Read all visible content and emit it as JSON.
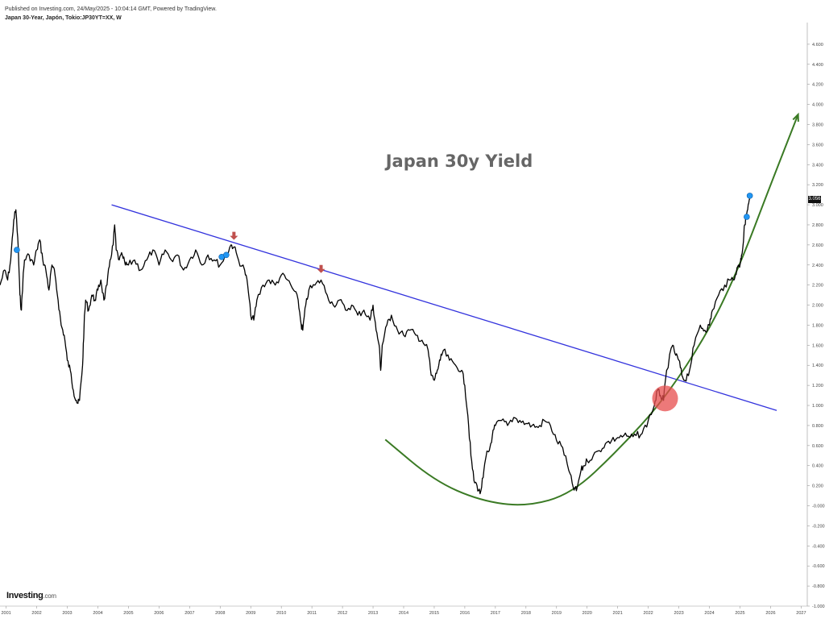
{
  "header": {
    "published": "Published on Investing.com, 24/May/2025 - 10:04:14 GMT, Powered by TradingView.",
    "symbol": "Japan 30-Year, Japón, Tokio:JP30YT=XX, W"
  },
  "logo": {
    "name": "Investing",
    "suffix": ".com"
  },
  "chart_data": {
    "type": "line",
    "title": "Japan 30y Yield",
    "last_price": "3.056",
    "xlim": [
      2000.8,
      2027.2
    ],
    "ylim": [
      -1.0,
      4.8
    ],
    "x_ticks": [
      "2001",
      "2002",
      "2003",
      "2004",
      "2005",
      "2006",
      "2007",
      "2008",
      "2009",
      "2010",
      "2011",
      "2012",
      "2013",
      "2014",
      "2015",
      "2016",
      "2017",
      "2018",
      "2019",
      "2020",
      "2021",
      "2022",
      "2023",
      "2024",
      "2025",
      "2026",
      "2027"
    ],
    "y_ticks": [
      "4.600",
      "4.400",
      "4.200",
      "4.000",
      "3.800",
      "3.600",
      "3.400",
      "3.200",
      "3.000",
      "2.800",
      "2.600",
      "2.400",
      "2.200",
      "2.000",
      "1.800",
      "1.600",
      "1.400",
      "1.200",
      "1.000",
      "0.800",
      "0.600",
      "0.400",
      "0.200",
      "-0.000",
      "-0.200",
      "-0.400",
      "-0.600",
      "-0.800",
      "-1.000"
    ],
    "series": [
      {
        "color": "#000000",
        "points": [
          [
            2000.8,
            2.2
          ],
          [
            2000.95,
            2.35
          ],
          [
            2001.05,
            2.25
          ],
          [
            2001.15,
            2.45
          ],
          [
            2001.25,
            2.85
          ],
          [
            2001.32,
            2.95
          ],
          [
            2001.4,
            2.55
          ],
          [
            2001.45,
            2.1
          ],
          [
            2001.5,
            1.95
          ],
          [
            2001.55,
            2.25
          ],
          [
            2001.6,
            2.45
          ],
          [
            2001.75,
            2.5
          ],
          [
            2001.9,
            2.4
          ],
          [
            2002.0,
            2.55
          ],
          [
            2002.1,
            2.65
          ],
          [
            2002.2,
            2.45
          ],
          [
            2002.3,
            2.35
          ],
          [
            2002.4,
            2.15
          ],
          [
            2002.5,
            2.4
          ],
          [
            2002.6,
            2.3
          ],
          [
            2002.7,
            2.05
          ],
          [
            2002.8,
            1.8
          ],
          [
            2002.9,
            1.7
          ],
          [
            2003.0,
            1.45
          ],
          [
            2003.1,
            1.35
          ],
          [
            2003.2,
            1.15
          ],
          [
            2003.3,
            1.05
          ],
          [
            2003.35,
            1.02
          ],
          [
            2003.4,
            1.05
          ],
          [
            2003.5,
            1.4
          ],
          [
            2003.55,
            1.8
          ],
          [
            2003.6,
            2.05
          ],
          [
            2003.7,
            1.95
          ],
          [
            2003.8,
            2.1
          ],
          [
            2003.9,
            2.05
          ],
          [
            2004.0,
            2.15
          ],
          [
            2004.1,
            2.25
          ],
          [
            2004.2,
            2.05
          ],
          [
            2004.3,
            2.2
          ],
          [
            2004.4,
            2.45
          ],
          [
            2004.5,
            2.6
          ],
          [
            2004.55,
            2.8
          ],
          [
            2004.6,
            2.55
          ],
          [
            2004.7,
            2.45
          ],
          [
            2004.8,
            2.5
          ],
          [
            2004.9,
            2.4
          ],
          [
            2005.0,
            2.4
          ],
          [
            2005.2,
            2.45
          ],
          [
            2005.4,
            2.35
          ],
          [
            2005.6,
            2.45
          ],
          [
            2005.8,
            2.55
          ],
          [
            2006.0,
            2.4
          ],
          [
            2006.2,
            2.55
          ],
          [
            2006.4,
            2.45
          ],
          [
            2006.6,
            2.5
          ],
          [
            2006.8,
            2.35
          ],
          [
            2007.0,
            2.45
          ],
          [
            2007.2,
            2.55
          ],
          [
            2007.4,
            2.4
          ],
          [
            2007.6,
            2.5
          ],
          [
            2007.8,
            2.45
          ],
          [
            2008.0,
            2.4
          ],
          [
            2008.2,
            2.5
          ],
          [
            2008.35,
            2.6
          ],
          [
            2008.45,
            2.58
          ],
          [
            2008.6,
            2.45
          ],
          [
            2008.8,
            2.35
          ],
          [
            2008.9,
            2.2
          ],
          [
            2009.0,
            1.9
          ],
          [
            2009.1,
            1.85
          ],
          [
            2009.2,
            2.05
          ],
          [
            2009.4,
            2.2
          ],
          [
            2009.6,
            2.25
          ],
          [
            2009.8,
            2.2
          ],
          [
            2010.0,
            2.3
          ],
          [
            2010.2,
            2.25
          ],
          [
            2010.4,
            2.15
          ],
          [
            2010.55,
            2.05
          ],
          [
            2010.65,
            1.8
          ],
          [
            2010.7,
            1.75
          ],
          [
            2010.8,
            2.0
          ],
          [
            2010.9,
            2.15
          ],
          [
            2011.1,
            2.2
          ],
          [
            2011.3,
            2.25
          ],
          [
            2011.5,
            2.1
          ],
          [
            2011.7,
            2.0
          ],
          [
            2011.9,
            2.05
          ],
          [
            2012.1,
            1.95
          ],
          [
            2012.3,
            2.0
          ],
          [
            2012.5,
            1.9
          ],
          [
            2012.7,
            1.95
          ],
          [
            2012.9,
            1.85
          ],
          [
            2013.0,
            2.0
          ],
          [
            2013.1,
            1.75
          ],
          [
            2013.2,
            1.6
          ],
          [
            2013.25,
            1.35
          ],
          [
            2013.3,
            1.6
          ],
          [
            2013.45,
            1.8
          ],
          [
            2013.6,
            1.9
          ],
          [
            2013.8,
            1.75
          ],
          [
            2014.0,
            1.7
          ],
          [
            2014.2,
            1.75
          ],
          [
            2014.4,
            1.7
          ],
          [
            2014.6,
            1.65
          ],
          [
            2014.8,
            1.55
          ],
          [
            2014.9,
            1.3
          ],
          [
            2015.0,
            1.25
          ],
          [
            2015.1,
            1.35
          ],
          [
            2015.2,
            1.45
          ],
          [
            2015.3,
            1.55
          ],
          [
            2015.5,
            1.45
          ],
          [
            2015.7,
            1.4
          ],
          [
            2015.9,
            1.35
          ],
          [
            2016.0,
            1.2
          ],
          [
            2016.1,
            0.9
          ],
          [
            2016.2,
            0.5
          ],
          [
            2016.3,
            0.25
          ],
          [
            2016.4,
            0.2
          ],
          [
            2016.5,
            0.12
          ],
          [
            2016.6,
            0.28
          ],
          [
            2016.7,
            0.5
          ],
          [
            2016.8,
            0.55
          ],
          [
            2016.9,
            0.7
          ],
          [
            2017.0,
            0.8
          ],
          [
            2017.2,
            0.85
          ],
          [
            2017.4,
            0.8
          ],
          [
            2017.6,
            0.88
          ],
          [
            2017.8,
            0.85
          ],
          [
            2018.0,
            0.82
          ],
          [
            2018.2,
            0.8
          ],
          [
            2018.4,
            0.78
          ],
          [
            2018.6,
            0.85
          ],
          [
            2018.8,
            0.8
          ],
          [
            2019.0,
            0.65
          ],
          [
            2019.2,
            0.58
          ],
          [
            2019.4,
            0.35
          ],
          [
            2019.55,
            0.18
          ],
          [
            2019.65,
            0.15
          ],
          [
            2019.8,
            0.35
          ],
          [
            2019.9,
            0.4
          ],
          [
            2020.0,
            0.45
          ],
          [
            2020.2,
            0.5
          ],
          [
            2020.4,
            0.55
          ],
          [
            2020.6,
            0.62
          ],
          [
            2020.8,
            0.65
          ],
          [
            2021.0,
            0.68
          ],
          [
            2021.2,
            0.7
          ],
          [
            2021.4,
            0.68
          ],
          [
            2021.6,
            0.7
          ],
          [
            2021.8,
            0.72
          ],
          [
            2022.0,
            0.85
          ],
          [
            2022.2,
            1.0
          ],
          [
            2022.3,
            1.15
          ],
          [
            2022.4,
            1.1
          ],
          [
            2022.5,
            1.05
          ],
          [
            2022.6,
            1.35
          ],
          [
            2022.8,
            1.6
          ],
          [
            2022.9,
            1.5
          ],
          [
            2023.0,
            1.45
          ],
          [
            2023.1,
            1.3
          ],
          [
            2023.2,
            1.25
          ],
          [
            2023.35,
            1.35
          ],
          [
            2023.5,
            1.6
          ],
          [
            2023.7,
            1.8
          ],
          [
            2023.85,
            1.75
          ],
          [
            2024.0,
            1.8
          ],
          [
            2024.1,
            1.95
          ],
          [
            2024.3,
            2.1
          ],
          [
            2024.5,
            2.2
          ],
          [
            2024.7,
            2.25
          ],
          [
            2024.85,
            2.3
          ],
          [
            2024.95,
            2.4
          ],
          [
            2025.0,
            2.4
          ],
          [
            2025.05,
            2.5
          ],
          [
            2025.1,
            2.6
          ],
          [
            2025.15,
            2.8
          ],
          [
            2025.2,
            2.88
          ],
          [
            2025.25,
            2.95
          ],
          [
            2025.32,
            3.06
          ]
        ]
      }
    ],
    "lines": [
      {
        "name": "trendline",
        "color": "#3333dd",
        "from": [
          2004.45,
          3.0
        ],
        "to": [
          2026.2,
          0.95
        ]
      }
    ],
    "curves": [
      {
        "name": "arc",
        "color": "#3a7a24",
        "points": [
          [
            2013.4,
            0.66
          ],
          [
            2015.0,
            0.25
          ],
          [
            2016.5,
            0.05
          ],
          [
            2018.0,
            -0.01
          ],
          [
            2019.5,
            0.12
          ],
          [
            2021.0,
            0.55
          ],
          [
            2022.5,
            1.05
          ],
          [
            2024.0,
            1.75
          ],
          [
            2025.0,
            2.4
          ],
          [
            2026.0,
            3.2
          ],
          [
            2026.9,
            3.9
          ]
        ]
      }
    ],
    "annotations": [
      {
        "type": "arrow-down",
        "color": "#c0504d",
        "at": [
          2008.45,
          2.65
        ]
      },
      {
        "type": "arrow-down",
        "color": "#c0504d",
        "at": [
          2011.3,
          2.32
        ]
      },
      {
        "type": "circle",
        "color": "#e74c4c",
        "at": [
          2022.55,
          1.07
        ]
      },
      {
        "type": "marker",
        "color": "#2196f3",
        "at": [
          2001.35,
          2.55
        ]
      },
      {
        "type": "marker",
        "color": "#2196f3",
        "at": [
          2008.05,
          2.48
        ]
      },
      {
        "type": "marker",
        "color": "#2196f3",
        "at": [
          2008.2,
          2.5
        ]
      },
      {
        "type": "marker",
        "color": "#2196f3",
        "at": [
          2025.22,
          2.88
        ]
      },
      {
        "type": "marker",
        "color": "#2196f3",
        "at": [
          2025.32,
          3.09
        ]
      }
    ]
  }
}
